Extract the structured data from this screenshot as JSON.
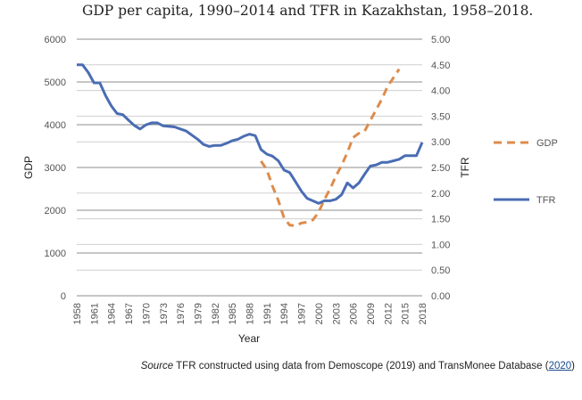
{
  "title": "GDP per capita, 1990–2014 and TFR in Kazakhstan, 1958–2018.",
  "source": {
    "label": "Source",
    "text": " TFR constructed using data from Demoscope (2019) and TransMonee Database (",
    "link": "2020",
    "close": ")"
  },
  "chart_data": {
    "type": "line",
    "xlabel": "Year",
    "ylabel": "GDP",
    "y2label": "TFR",
    "ylim": [
      0,
      6000
    ],
    "y2lim": [
      0,
      5
    ],
    "xlim": [
      1958,
      2018
    ],
    "x_ticks": [
      "1958",
      "1961",
      "1964",
      "1967",
      "1970",
      "1973",
      "1976",
      "1979",
      "1982",
      "1985",
      "1988",
      "1991",
      "1994",
      "1997",
      "2000",
      "2003",
      "2006",
      "2009",
      "2012",
      "2015",
      "2018"
    ],
    "y_ticks": [
      "0",
      "1000",
      "2000",
      "3000",
      "4000",
      "5000",
      "6000"
    ],
    "y2_ticks": [
      "0.00",
      "0.50",
      "1.00",
      "1.50",
      "2.00",
      "2.50",
      "3.00",
      "3.50",
      "4.00",
      "4.50",
      "5.00"
    ],
    "legend_position": "right",
    "gridlines": true,
    "series": [
      {
        "name": "GDP",
        "axis": "left",
        "color": "#dd8c4c",
        "style": "dashed",
        "x": [
          1990,
          1991,
          1992,
          1993,
          1994,
          1995,
          1996,
          1997,
          1998,
          1999,
          2000,
          2001,
          2002,
          2003,
          2004,
          2005,
          2006,
          2007,
          2008,
          2009,
          2010,
          2011,
          2012,
          2013,
          2014
        ],
        "y": [
          3150,
          2950,
          2560,
          2230,
          1820,
          1650,
          1640,
          1700,
          1720,
          1770,
          1950,
          2250,
          2500,
          2800,
          3050,
          3350,
          3700,
          3800,
          3850,
          4100,
          4350,
          4600,
          4900,
          5100,
          5300
        ]
      },
      {
        "name": "TFR",
        "axis": "right",
        "color": "#4a6db3",
        "style": "solid",
        "x": [
          1958,
          1959,
          1960,
          1961,
          1962,
          1963,
          1964,
          1965,
          1966,
          1967,
          1968,
          1969,
          1970,
          1971,
          1972,
          1973,
          1974,
          1975,
          1976,
          1977,
          1978,
          1979,
          1980,
          1981,
          1982,
          1983,
          1984,
          1985,
          1986,
          1987,
          1988,
          1989,
          1990,
          1991,
          1992,
          1993,
          1994,
          1995,
          1996,
          1997,
          1998,
          1999,
          2000,
          2001,
          2002,
          2003,
          2004,
          2005,
          2006,
          2007,
          2008,
          2009,
          2010,
          2011,
          2012,
          2013,
          2014,
          2015,
          2016,
          2017,
          2018
        ],
        "y": [
          4.5,
          4.5,
          4.35,
          4.15,
          4.15,
          3.9,
          3.7,
          3.55,
          3.53,
          3.42,
          3.32,
          3.25,
          3.33,
          3.37,
          3.37,
          3.31,
          3.3,
          3.29,
          3.25,
          3.21,
          3.13,
          3.05,
          2.95,
          2.91,
          2.93,
          2.93,
          2.97,
          3.02,
          3.05,
          3.11,
          3.15,
          3.12,
          2.85,
          2.76,
          2.72,
          2.63,
          2.45,
          2.4,
          2.22,
          2.04,
          1.9,
          1.85,
          1.8,
          1.85,
          1.85,
          1.88,
          1.97,
          2.2,
          2.1,
          2.2,
          2.37,
          2.53,
          2.55,
          2.6,
          2.6,
          2.63,
          2.66,
          2.73,
          2.73,
          2.73,
          2.99
        ]
      }
    ]
  }
}
